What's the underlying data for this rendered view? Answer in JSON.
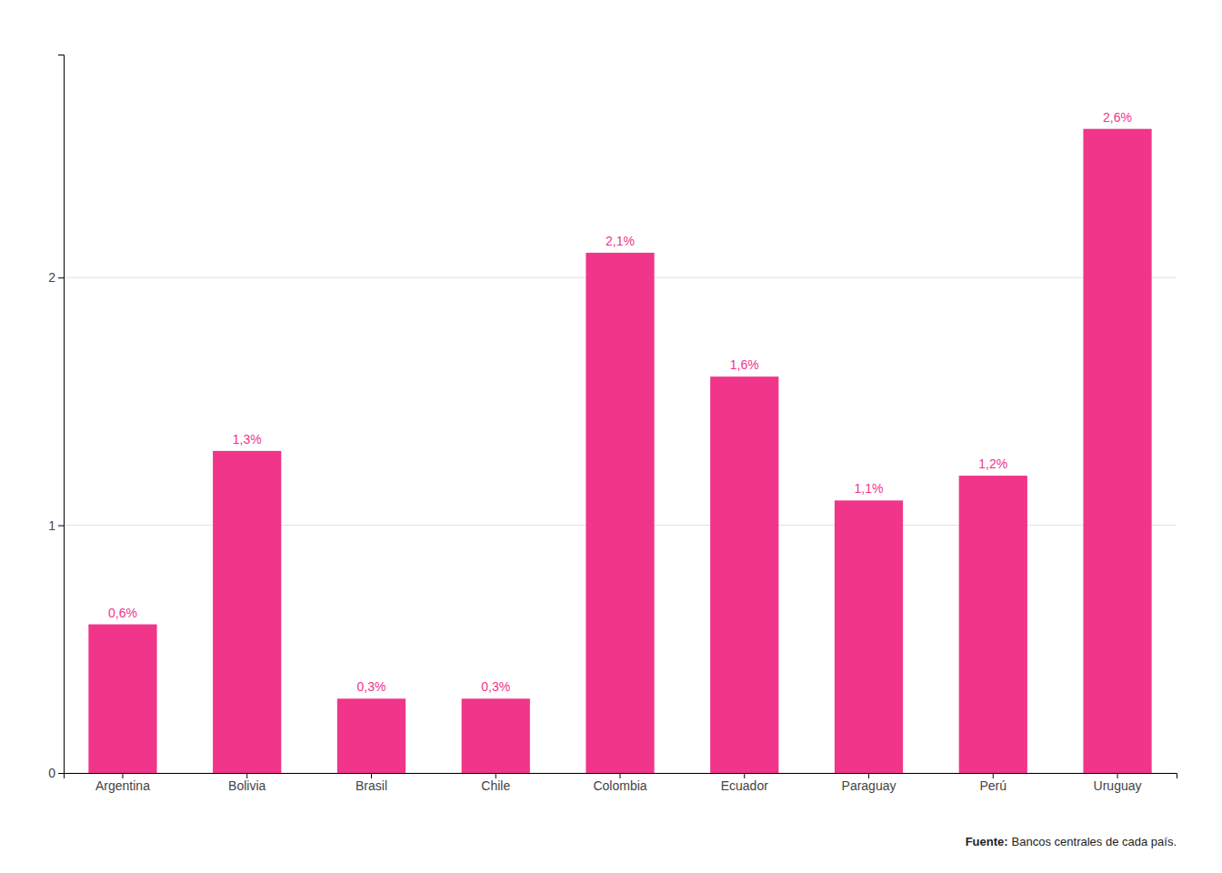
{
  "chart_data": {
    "type": "bar",
    "categories": [
      "Argentina",
      "Bolivia",
      "Brasil",
      "Chile",
      "Colombia",
      "Ecuador",
      "Paraguay",
      "Perú",
      "Uruguay"
    ],
    "values": [
      0.6,
      1.3,
      0.3,
      0.3,
      2.1,
      1.6,
      1.1,
      1.2,
      2.6
    ],
    "value_labels": [
      "0,6%",
      "1,3%",
      "0,3%",
      "0,3%",
      "2,1%",
      "1,6%",
      "1,1%",
      "1,2%",
      "2,6%"
    ],
    "data_labels": true,
    "color": "#F0358A",
    "ylim": [
      0,
      2.9
    ],
    "yticks": [
      0,
      1,
      2
    ],
    "grid": true,
    "annotations": [
      "Fuente:",
      "Bancos centrales de cada país."
    ]
  }
}
